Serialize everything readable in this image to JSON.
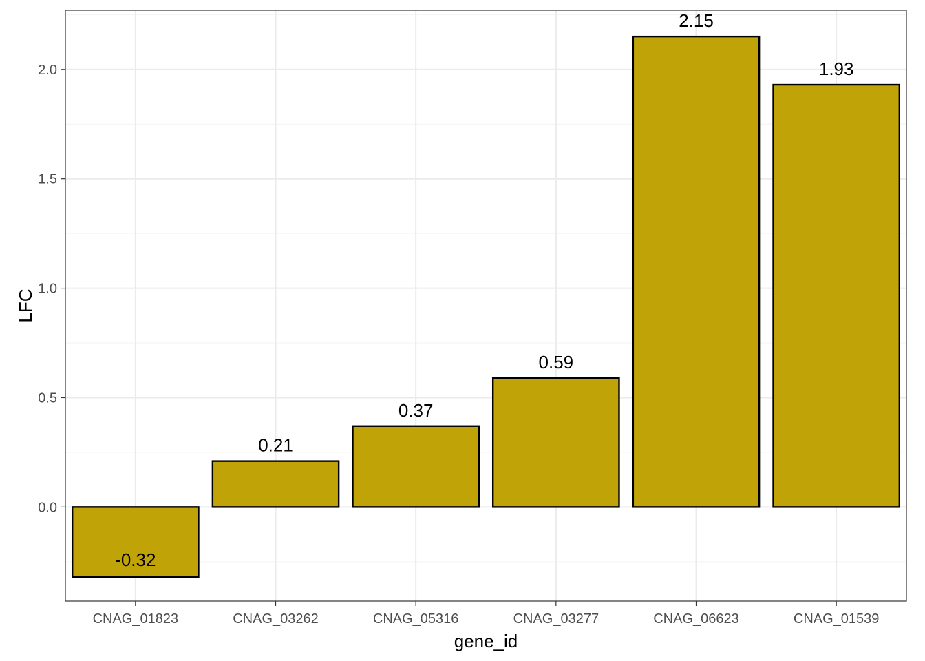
{
  "chart_data": {
    "type": "bar",
    "categories": [
      "CNAG_01823",
      "CNAG_03262",
      "CNAG_05316",
      "CNAG_03277",
      "CNAG_06623",
      "CNAG_01539"
    ],
    "values": [
      -0.32,
      0.21,
      0.37,
      0.59,
      2.15,
      1.93
    ],
    "data_labels": [
      "-0.32",
      "0.21",
      "0.37",
      "0.59",
      "2.15",
      "1.93"
    ],
    "xlabel": "gene_id",
    "ylabel": "LFC",
    "ylim": [
      -0.43,
      2.27
    ],
    "yticks": [
      0.0,
      0.5,
      1.0,
      1.5,
      2.0
    ],
    "ytick_labels": [
      "0.0",
      "0.5",
      "1.0",
      "1.5",
      "2.0"
    ],
    "grid": true,
    "legend": "none",
    "colors": {
      "bar_fill": "#C0A306",
      "bar_stroke": "#000000",
      "grid_major": "#EBEBEB",
      "grid_minor": "#F5F5F5",
      "panel_border": "#333333"
    }
  }
}
